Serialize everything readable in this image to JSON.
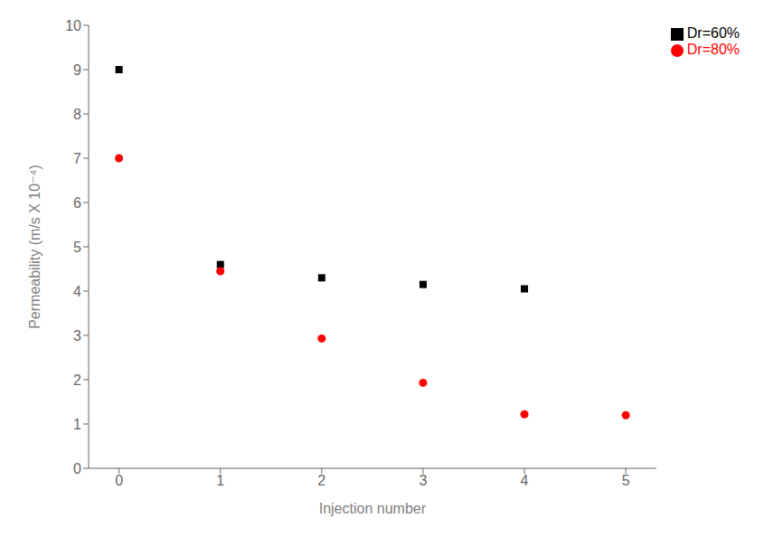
{
  "chart_data": {
    "type": "scatter",
    "x_label": "Injection number",
    "y_label": "Permeability (m/s X 10⁻⁴)",
    "xlim": [
      -0.3,
      5.3
    ],
    "xticks": [
      0,
      1,
      2,
      3,
      4,
      5
    ],
    "ylim": [
      0,
      10
    ],
    "yticks": [
      0,
      1,
      2,
      3,
      4,
      5,
      6,
      7,
      8,
      9,
      10
    ],
    "grid": false,
    "legend": "upper right",
    "series": [
      {
        "name": "Dr=60%",
        "color": "#000000",
        "marker": "square",
        "x": [
          0,
          1,
          2,
          3,
          4
        ],
        "values": [
          9.0,
          4.6,
          4.3,
          4.15,
          4.05
        ]
      },
      {
        "name": "Dr=80%",
        "color": "#ff0000",
        "marker": "circle",
        "x": [
          0,
          1,
          2,
          3,
          4,
          5
        ],
        "values": [
          7.0,
          4.45,
          2.93,
          1.93,
          1.22,
          1.2
        ]
      }
    ]
  }
}
